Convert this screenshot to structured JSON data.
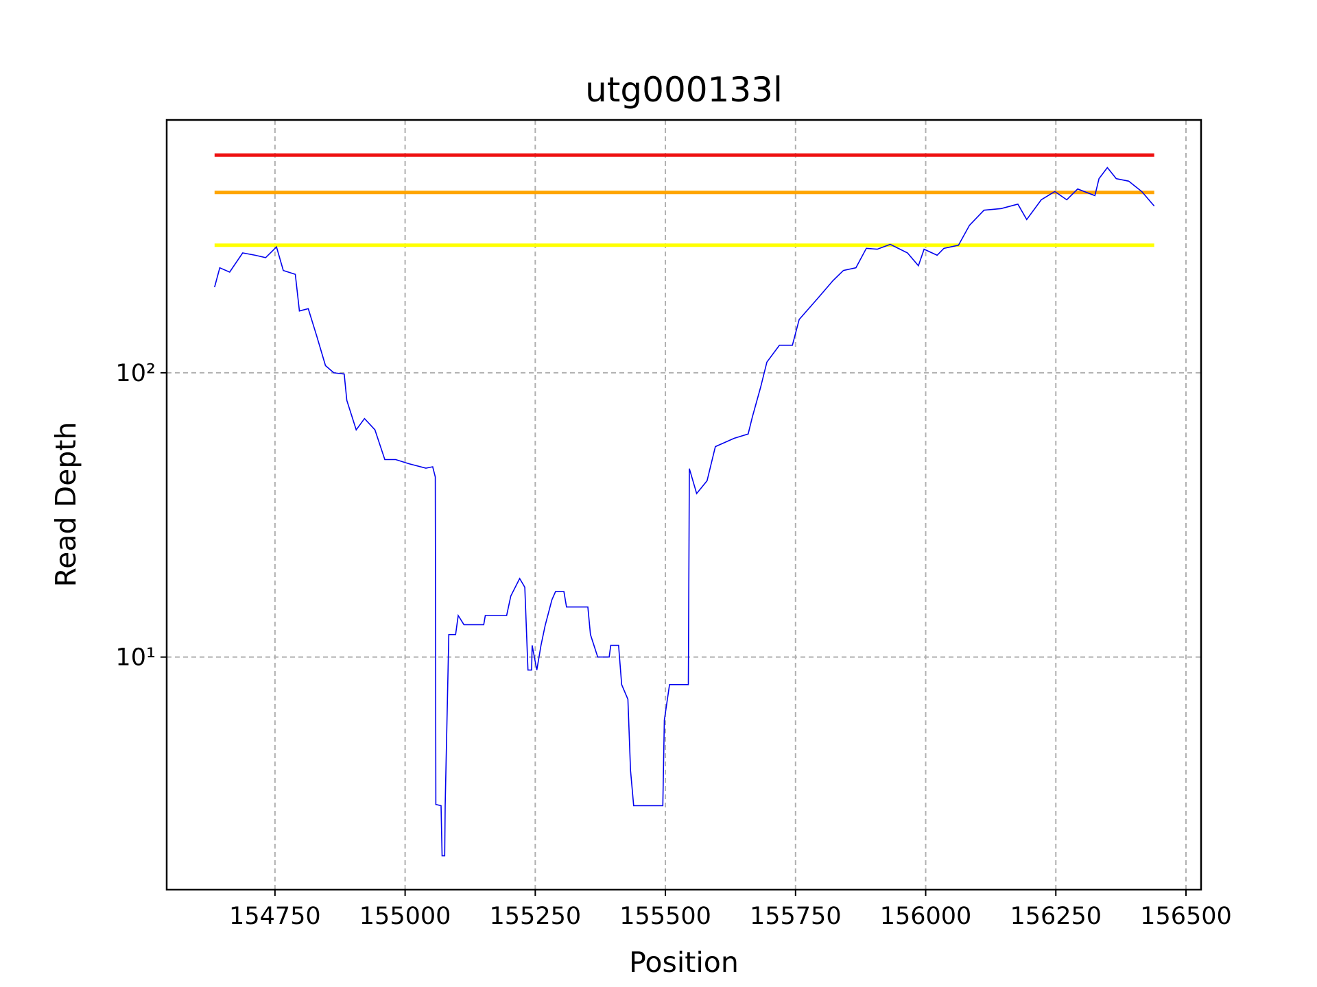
{
  "chart_data": {
    "type": "line",
    "title": "utg000133l",
    "x_label": "Position",
    "y_label": "Read Depth",
    "y_scale": "log",
    "grid": true,
    "xlim": [
      154542,
      156529
    ],
    "ylim": [
      1.52,
      775
    ],
    "xticks": [
      154750,
      155000,
      155250,
      155500,
      155750,
      156000,
      156250,
      156500
    ],
    "yticks": [
      {
        "value": 10,
        "label": "10¹"
      },
      {
        "value": 100,
        "label": "10²"
      }
    ],
    "reference_lines": [
      {
        "value": 583,
        "color": "#ee1111"
      },
      {
        "value": 431,
        "color": "#ffa500"
      },
      {
        "value": 281,
        "color": "#ffff00"
      }
    ],
    "reference_xrange": [
      154634,
      156439
    ],
    "series": [
      {
        "color": "#0000ee",
        "x": [
          154634,
          154644,
          154663,
          154688,
          154712,
          154732,
          154753,
          154766,
          154789,
          154797,
          154814,
          154830,
          154847,
          154863,
          154883,
          154888,
          154906,
          154922,
          154942,
          154961,
          154982,
          155007,
          155040,
          155053,
          155058,
          155059,
          155069,
          155071,
          155076,
          155077,
          155084,
          155097,
          155102,
          155113,
          155151,
          155154,
          155195,
          155203,
          155220,
          155230,
          155236,
          155243,
          155244,
          155253,
          155261,
          155269,
          155282,
          155289,
          155305,
          155310,
          155351,
          155356,
          155370,
          155392,
          155395,
          155410,
          155416,
          155428,
          155433,
          155439,
          155495,
          155498,
          155508,
          155544,
          155546,
          155560,
          155580,
          155596,
          155632,
          155659,
          155667,
          155683,
          155695,
          155719,
          155744,
          155757,
          155793,
          155822,
          155842,
          155866,
          155886,
          155907,
          155932,
          155965,
          155986,
          155997,
          156022,
          156035,
          156063,
          156084,
          156112,
          156145,
          156177,
          156194,
          156222,
          156248,
          156271,
          156292,
          156325,
          156333,
          156349,
          156366,
          156390,
          156415,
          156439
        ],
        "values": [
          200,
          234,
          226,
          264,
          259,
          254,
          277,
          229,
          222,
          165,
          168,
          135,
          106,
          100,
          99,
          80,
          63,
          69,
          63,
          49.5,
          49.5,
          47.9,
          46.2,
          46.7,
          43,
          3.03,
          3,
          2,
          2,
          3,
          12,
          12,
          14,
          13,
          13,
          14,
          14,
          16.4,
          18.9,
          17.6,
          9,
          9,
          11,
          9,
          11,
          12.9,
          15.9,
          17,
          17,
          15,
          15,
          12,
          10,
          10,
          11,
          11,
          8,
          7.1,
          4,
          3,
          3,
          6,
          8,
          8,
          46,
          37.6,
          41.7,
          55,
          58.8,
          60.9,
          69.9,
          89,
          109,
          125,
          125,
          154,
          183,
          211,
          229,
          234,
          274,
          272,
          283,
          264,
          238,
          272,
          259,
          274,
          281,
          330,
          373,
          378,
          392,
          346,
          406,
          434,
          406,
          443,
          420,
          482,
          527,
          482,
          472,
          434,
          386
        ]
      }
    ]
  }
}
